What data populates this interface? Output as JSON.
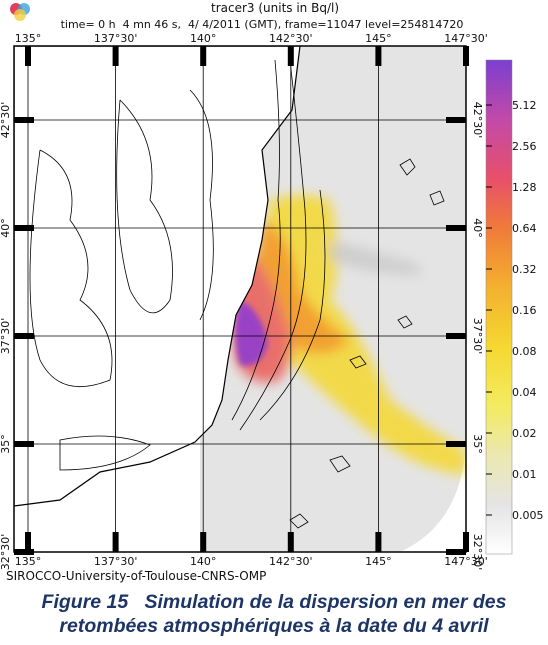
{
  "header": {
    "title": "tracer3 (units in Bq/l)",
    "subtitle": "time= 0 h  4 mn 46 s,  4/ 4/2011 (GMT), frame=11047 level=254814720"
  },
  "map": {
    "lon_labels": [
      "135°",
      "137°30'",
      "140°",
      "142°30'",
      "145°",
      "147°30'"
    ],
    "lat_labels": [
      "32°30'",
      "35°",
      "37°30'",
      "40°",
      "42°30'"
    ]
  },
  "colorbar": {
    "ticks": [
      5.12,
      2.56,
      1.28,
      0.64,
      0.32,
      0.16,
      0.08,
      0.04,
      0.02,
      0.01,
      0.005
    ]
  },
  "credit": "SIROCCO-University-of-Toulouse-CNRS-OMP",
  "caption": {
    "line1": "Figure 15   Simulation de la dispersion en mer des",
    "line2": "retombées atmosphériques à la date du 4 avril"
  }
}
